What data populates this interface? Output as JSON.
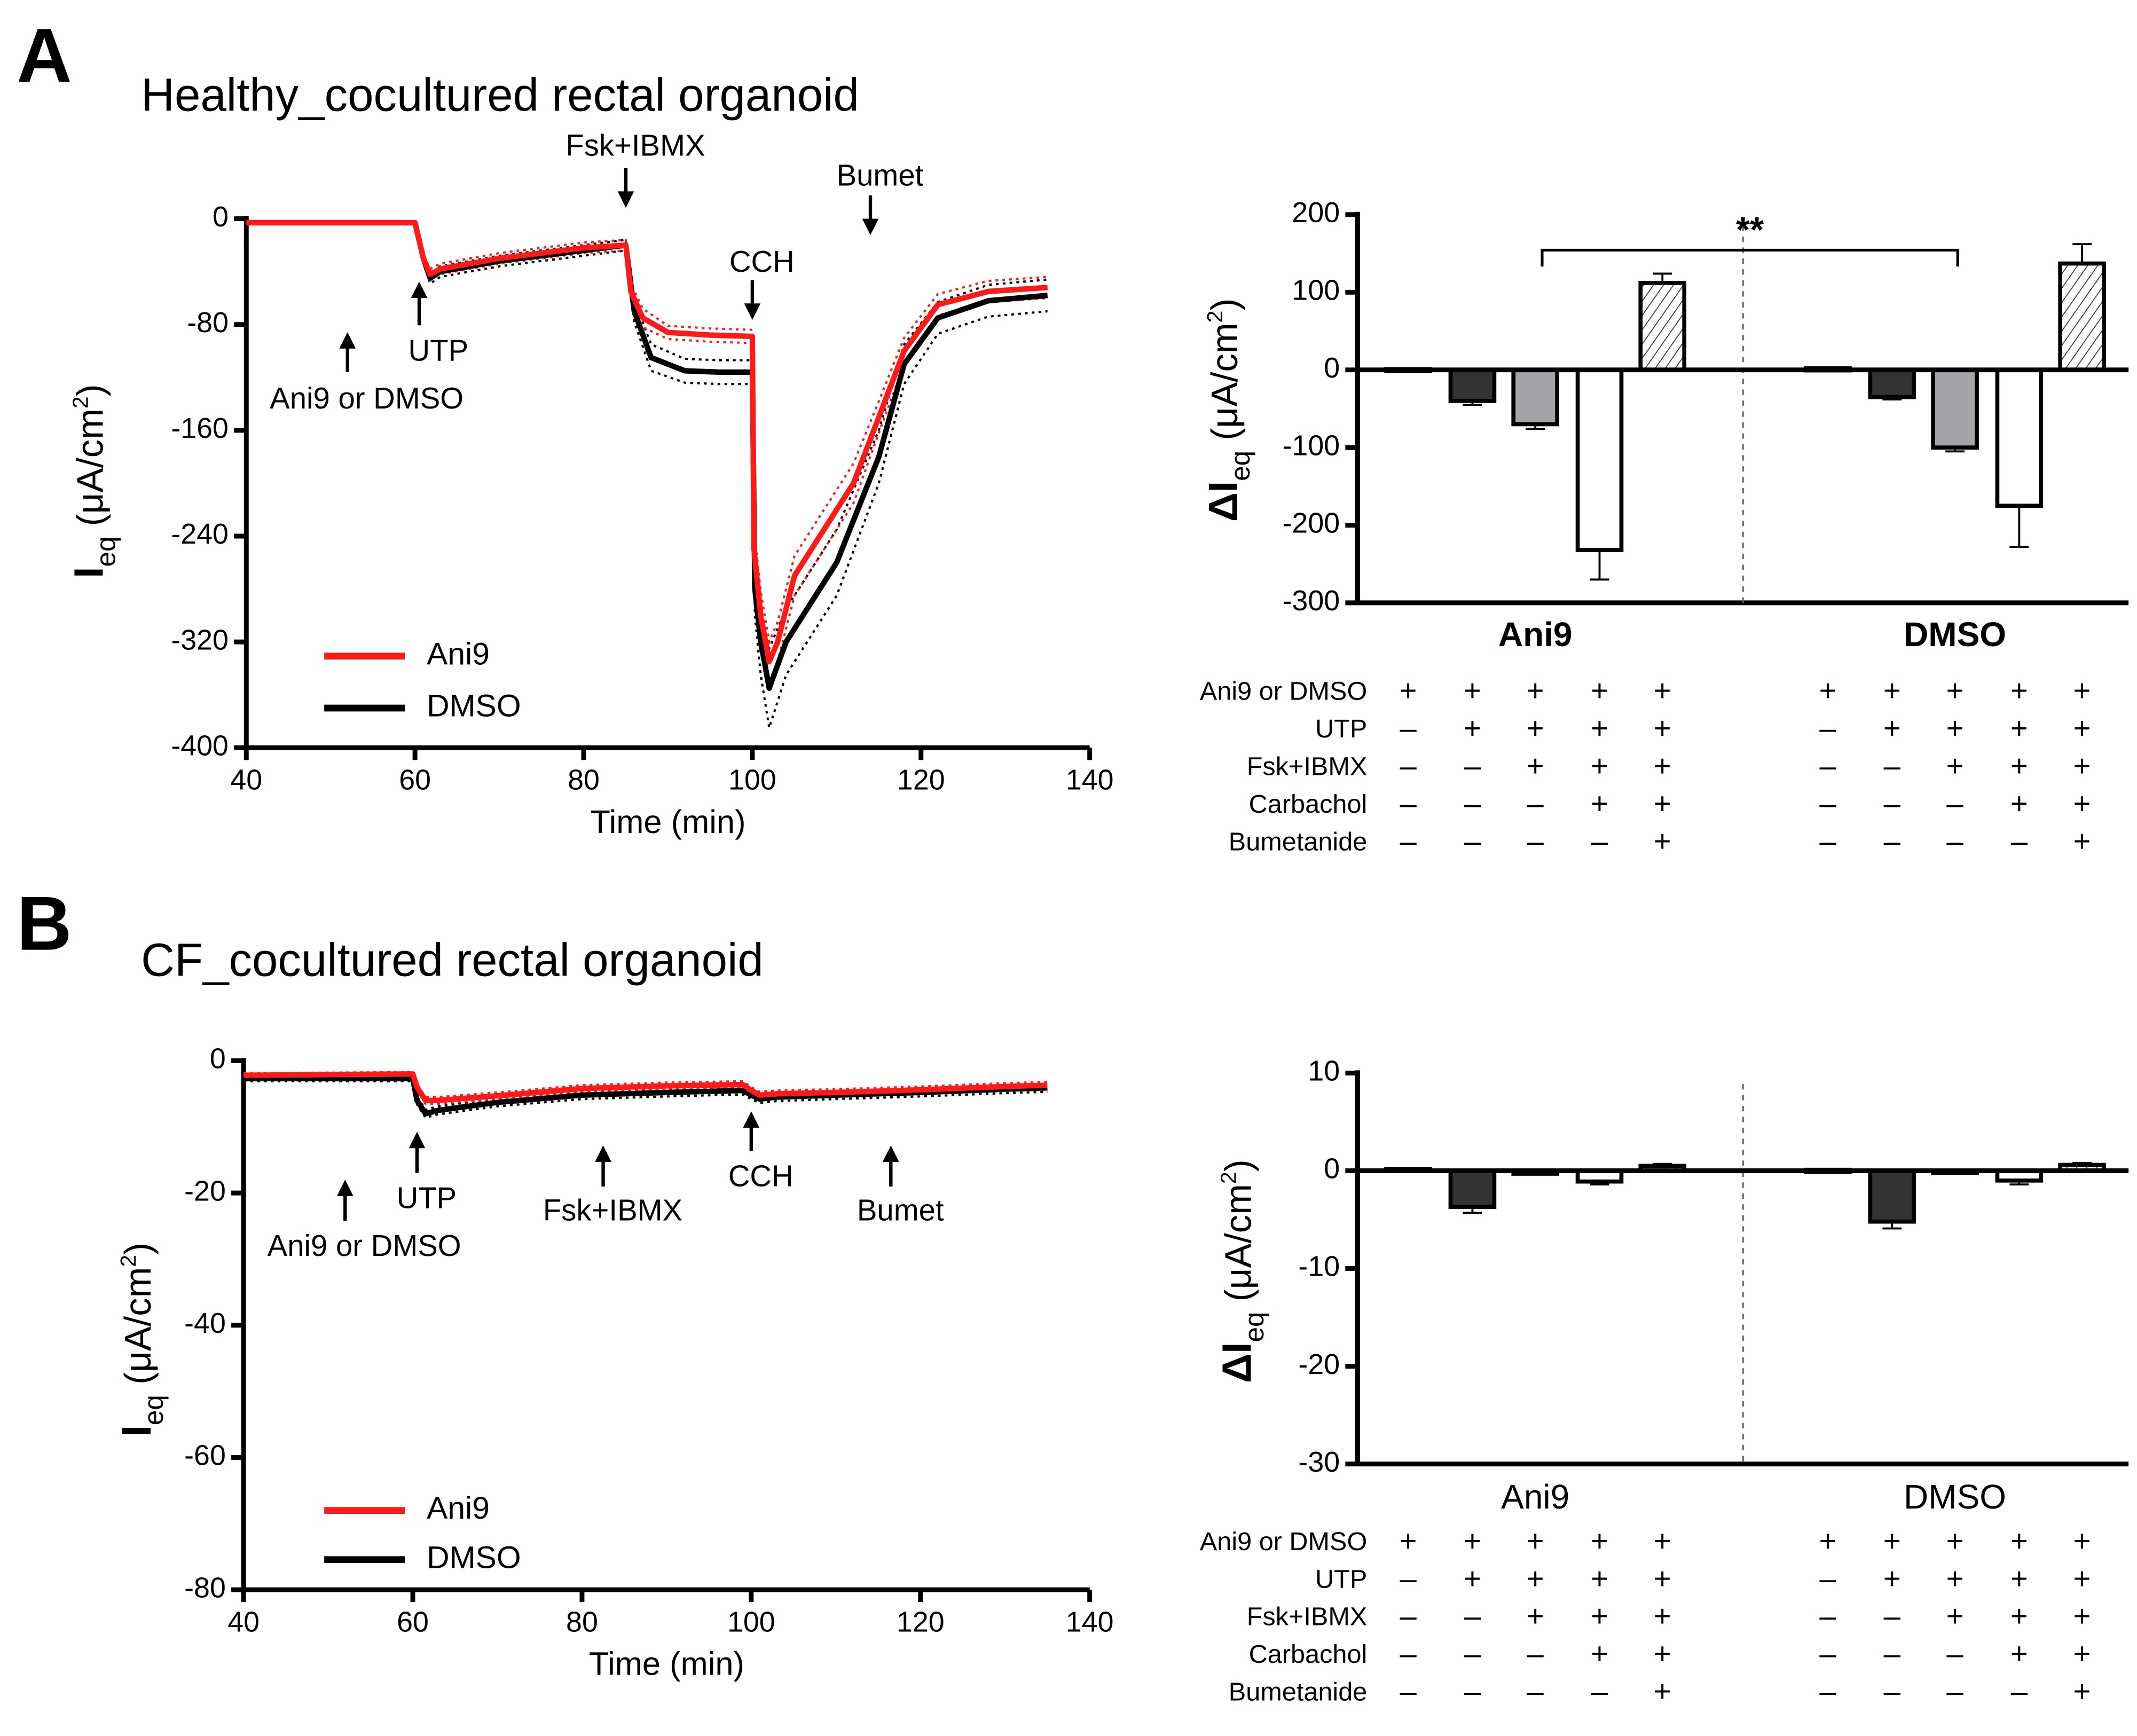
{
  "panels": [
    {
      "letter": "A",
      "title": "Healthy_cocultured rectal organoid",
      "trace": {
        "type": "line",
        "xlabel": "Time (min)",
        "ylabel_main": "I",
        "ylabel_sub": "eq",
        "ylabel_unit": " (μA/cm",
        "ylabel_sup": "2",
        "ylabel_end": ")",
        "xlim": [
          40,
          140
        ],
        "ylim": [
          -400,
          0
        ],
        "xticks": [
          40,
          60,
          80,
          100,
          120,
          140
        ],
        "yticks": [
          0,
          -80,
          -160,
          -240,
          -320,
          -400
        ],
        "legend": [
          "Ani9",
          "DMSO"
        ],
        "series": [
          {
            "name": "Ani9",
            "color": "#ff1a1a",
            "x": [
              40,
              60,
              61,
              61.8,
              63,
              70,
              80,
              85,
              85.6,
              87,
              90,
              95,
              100,
              100.2,
              101,
              102,
              103,
              105,
              108,
              112,
              115,
              118,
              122,
              128,
              135
            ],
            "y": [
              -3,
              -3,
              -30,
              -42,
              -38,
              -30,
              -22,
              -20,
              -55,
              -75,
              -86,
              -88,
              -89,
              -250,
              -300,
              -335,
              -320,
              -270,
              -240,
              -200,
              -150,
              -100,
              -65,
              -55,
              -52
            ],
            "sem": [
              1,
              1,
              3,
              4,
              4,
              4,
              4,
              4,
              6,
              7,
              5,
              5,
              5,
              15,
              18,
              15,
              15,
              15,
              15,
              15,
              12,
              10,
              8,
              8,
              8
            ]
          },
          {
            "name": "DMSO",
            "color": "#000000",
            "x": [
              40,
              60,
              61,
              61.8,
              63,
              70,
              80,
              85,
              86,
              88,
              92,
              96,
              100,
              100.3,
              101,
              102,
              104,
              107,
              110,
              115,
              118,
              122,
              128,
              135
            ],
            "y": [
              -3,
              -3,
              -30,
              -45,
              -40,
              -32,
              -24,
              -20,
              -70,
              -105,
              -115,
              -116,
              -116,
              -280,
              -320,
              -355,
              -320,
              -290,
              -260,
              -180,
              -110,
              -75,
              -62,
              -58
            ],
            "sem": [
              1,
              1,
              3,
              4,
              4,
              4,
              4,
              4,
              8,
              10,
              9,
              9,
              9,
              20,
              25,
              30,
              25,
              25,
              25,
              20,
              15,
              12,
              12,
              12
            ]
          }
        ],
        "annotations": [
          {
            "label": "Ani9 or DMSO",
            "x": 52,
            "dir": "up"
          },
          {
            "label": "UTP",
            "x": 60.5,
            "dir": "up"
          },
          {
            "label": "Fsk+IBMX",
            "x": 85,
            "dir": "down"
          },
          {
            "label": "CCH",
            "x": 100,
            "dir": "down"
          },
          {
            "label": "Bumet",
            "x": 114,
            "dir": "down"
          }
        ]
      },
      "bars": {
        "type": "bar",
        "ylabel_main": "ΔI",
        "ylabel_sub": "eq",
        "ylabel_unit": " (μA/cm",
        "ylabel_sup": "2",
        "ylabel_end": ")",
        "ylim": [
          -300,
          200
        ],
        "yticks": [
          200,
          100,
          0,
          -100,
          -200,
          -300
        ],
        "group_bold": true,
        "groups": [
          {
            "name": "Ani9",
            "values": [
              1,
              -40,
              -70,
              -232,
              112
            ],
            "errors": [
              1,
              5,
              6,
              38,
              12
            ]
          },
          {
            "name": "DMSO",
            "values": [
              2,
              -35,
              -100,
              -175,
              137
            ],
            "errors": [
              1,
              3,
              5,
              53,
              25
            ]
          }
        ],
        "significance": {
          "label": "**",
          "between": [
            [
              0,
              2
            ],
            [
              1,
              2
            ]
          ]
        }
      }
    },
    {
      "letter": "B",
      "title": "CF_cocultured rectal organoid",
      "trace": {
        "type": "line",
        "xlabel": "Time (min)",
        "ylabel_main": "I",
        "ylabel_sub": "eq",
        "ylabel_unit": " (μA/cm",
        "ylabel_sup": "2",
        "ylabel_end": ")",
        "xlim": [
          40,
          140
        ],
        "ylim": [
          -80,
          0
        ],
        "xticks": [
          40,
          60,
          80,
          100,
          120,
          140
        ],
        "yticks": [
          0,
          -20,
          -40,
          -60,
          -80
        ],
        "legend": [
          "Ani9",
          "DMSO"
        ],
        "series": [
          {
            "name": "Ani9",
            "color": "#ff1a1a",
            "x": [
              40,
              60,
              60.5,
              61.5,
              63,
              70,
              80,
              90,
              99,
              100,
              101,
              103,
              110,
              120,
              130,
              135
            ],
            "y": [
              -2.2,
              -2,
              -4,
              -6,
              -6,
              -5.3,
              -4.2,
              -3.8,
              -3.6,
              -4.5,
              -5.2,
              -5,
              -4.8,
              -4.4,
              -3.9,
              -3.7
            ],
            "sem": [
              0.3,
              0.3,
              0.5,
              0.5,
              0.5,
              0.5,
              0.5,
              0.5,
              0.5,
              0.5,
              0.5,
              0.5,
              0.5,
              0.5,
              0.5,
              0.5
            ]
          },
          {
            "name": "DMSO",
            "color": "#000000",
            "x": [
              40,
              60,
              60.5,
              61.5,
              63,
              70,
              80,
              90,
              99,
              100,
              101,
              103,
              110,
              120,
              130,
              135
            ],
            "y": [
              -2.7,
              -2.7,
              -6,
              -8,
              -7.5,
              -6.3,
              -5.2,
              -4.8,
              -4.5,
              -5.2,
              -5.8,
              -5.5,
              -5.2,
              -4.8,
              -4.3,
              -4.1
            ],
            "sem": [
              0.4,
              0.4,
              0.6,
              0.6,
              0.6,
              0.6,
              0.6,
              0.6,
              0.6,
              0.6,
              0.6,
              0.6,
              0.6,
              0.6,
              0.6,
              0.6
            ]
          }
        ],
        "annotations": [
          {
            "label": "Ani9 or DMSO",
            "x": 52,
            "dir": "up",
            "row": 2
          },
          {
            "label": "UTP",
            "x": 60.5,
            "dir": "up",
            "row": 0
          },
          {
            "label": "Fsk+IBMX",
            "x": 82.5,
            "dir": "up",
            "row": 1
          },
          {
            "label": "CCH",
            "x": 100,
            "dir": "up",
            "row": -1
          },
          {
            "label": "Bumet",
            "x": 116.5,
            "dir": "up",
            "row": 1
          }
        ]
      },
      "bars": {
        "type": "bar",
        "ylabel_main": "ΔI",
        "ylabel_sub": "eq",
        "ylabel_unit": " (μA/cm",
        "ylabel_sup": "2",
        "ylabel_end": ")",
        "ylim": [
          -30,
          10
        ],
        "yticks": [
          10,
          0,
          -10,
          -20,
          -30
        ],
        "group_bold": false,
        "groups": [
          {
            "name": "Ani9",
            "values": [
              0.2,
              -3.7,
              -0.3,
              -1.1,
              0.5
            ],
            "errors": [
              0.05,
              0.6,
              0.05,
              0.3,
              0.2
            ]
          },
          {
            "name": "DMSO",
            "values": [
              0.1,
              -5.2,
              -0.2,
              -1.0,
              0.6
            ],
            "errors": [
              0.05,
              0.7,
              0.05,
              0.4,
              0.2
            ]
          }
        ]
      }
    }
  ],
  "treatment_table": {
    "rows": [
      "Ani9 or DMSO",
      "UTP",
      "Fsk+IBMX",
      "Carbachol",
      "Bumetanide"
    ],
    "cells": [
      [
        "+",
        "+",
        "+",
        "+",
        "+"
      ],
      [
        "–",
        "+",
        "+",
        "+",
        "+"
      ],
      [
        "–",
        "–",
        "+",
        "+",
        "+"
      ],
      [
        "–",
        "–",
        "–",
        "+",
        "+"
      ],
      [
        "–",
        "–",
        "–",
        "–",
        "+"
      ]
    ]
  },
  "bar_fills": [
    "#ffffff",
    "#333333",
    "#a3a3a8",
    "#ffffff",
    "hatch"
  ],
  "chart_data": [
    {
      "type": "line",
      "title": "Healthy_cocultured rectal organoid",
      "xlabel": "Time (min)",
      "ylabel": "Ieq (μA/cm2)",
      "xlim": [
        40,
        140
      ],
      "ylim": [
        -400,
        0
      ],
      "series_ref": "panels.0.trace.series"
    },
    {
      "type": "bar",
      "ylabel": "ΔIeq (μA/cm2)",
      "ylim": [
        -300,
        200
      ],
      "categories": [
        "Ani9",
        "DMSO"
      ],
      "series_ref": "panels.0.bars.groups"
    },
    {
      "type": "line",
      "title": "CF_cocultured rectal organoid",
      "xlabel": "Time (min)",
      "ylabel": "Ieq (μA/cm2)",
      "xlim": [
        40,
        140
      ],
      "ylim": [
        -80,
        0
      ],
      "series_ref": "panels.1.trace.series"
    },
    {
      "type": "bar",
      "ylabel": "ΔIeq (μA/cm2)",
      "ylim": [
        -30,
        10
      ],
      "categories": [
        "Ani9",
        "DMSO"
      ],
      "series_ref": "panels.1.bars.groups"
    }
  ]
}
